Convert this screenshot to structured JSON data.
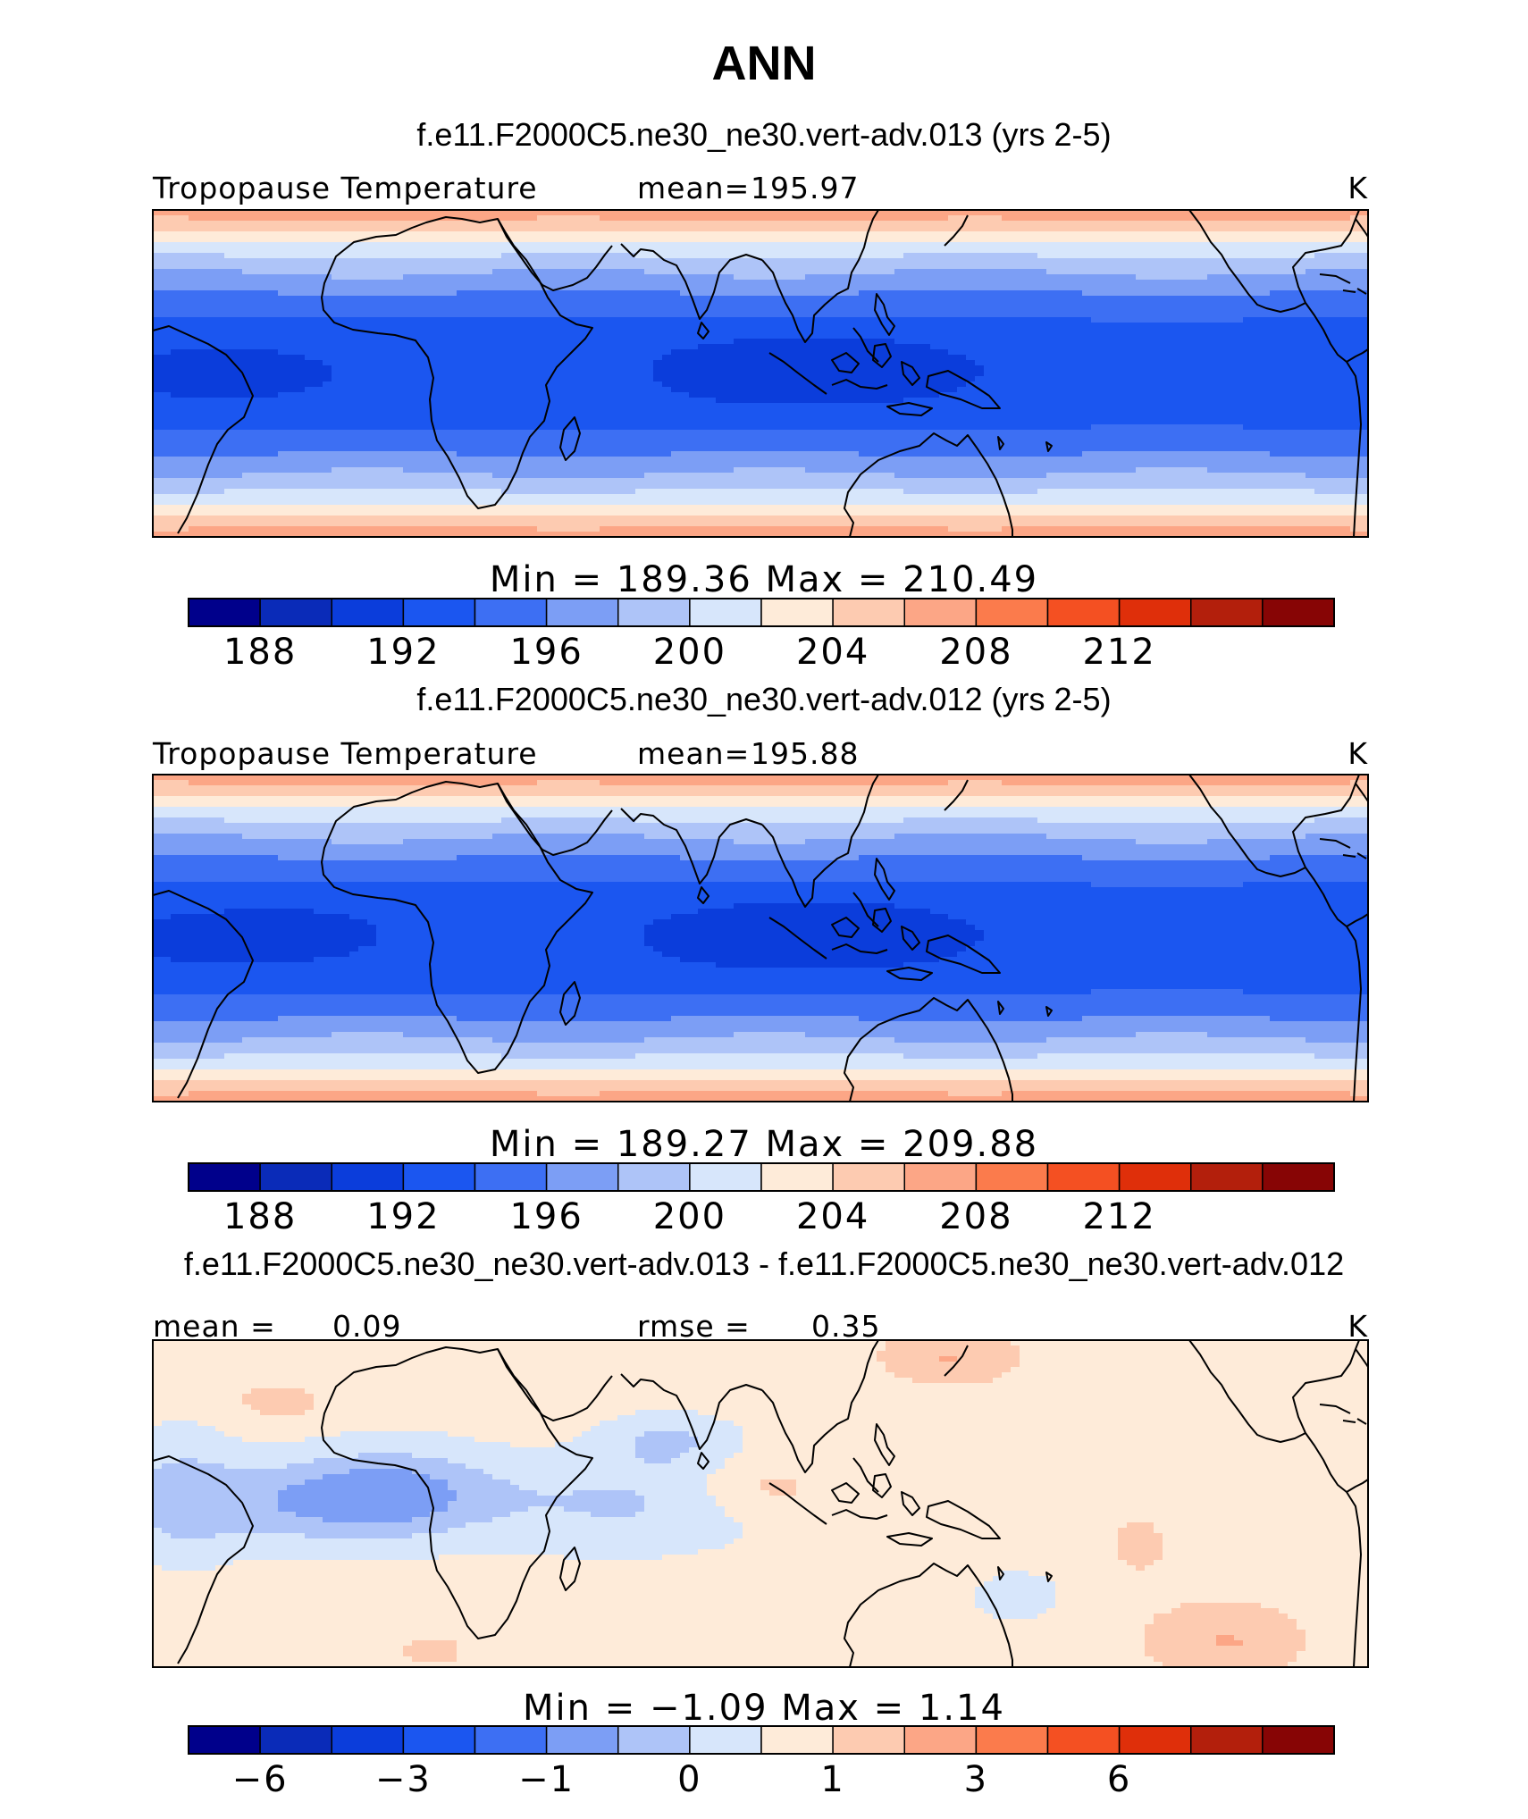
{
  "figure": {
    "title": "ANN",
    "colors": {
      "palette": [
        "#00008b",
        "#0a2bb8",
        "#0b3ddb",
        "#1b56f0",
        "#3d6ff3",
        "#7c9ef5",
        "#aec4f8",
        "#d7e6fb",
        "#feebd9",
        "#fdcbb1",
        "#fca686",
        "#fb7b4c",
        "#f45022",
        "#df2f0a",
        "#b31f0c",
        "#870505"
      ]
    }
  },
  "chart_data": [
    {
      "type": "heatmap",
      "subtitle": "f.e11.F2000C5.ne30_ne30.vert-adv.013 (yrs 2-5)",
      "variable_label": "Tropopause Temperature",
      "stat_label": "mean=",
      "stat_value": "195.97",
      "units": "K",
      "min_max_text": "Min = 189.36 Max = 210.49",
      "min": 189.36,
      "max": 210.49,
      "mean": 195.97,
      "colorbar": {
        "levels": [
          186,
          188,
          190,
          192,
          194,
          196,
          198,
          200,
          202,
          204,
          206,
          208,
          210,
          212,
          214
        ],
        "tick_labels": [
          "188",
          "192",
          "196",
          "200",
          "204",
          "208",
          "212"
        ]
      },
      "longitude_range": [
        -30,
        300
      ],
      "latitude_range": [
        -45,
        45
      ]
    },
    {
      "type": "heatmap",
      "subtitle": "f.e11.F2000C5.ne30_ne30.vert-adv.012 (yrs 2-5)",
      "variable_label": "Tropopause Temperature",
      "stat_label": "mean=",
      "stat_value": "195.88",
      "units": "K",
      "min_max_text": "Min = 189.27 Max = 209.88",
      "min": 189.27,
      "max": 209.88,
      "mean": 195.88,
      "colorbar": {
        "levels": [
          186,
          188,
          190,
          192,
          194,
          196,
          198,
          200,
          202,
          204,
          206,
          208,
          210,
          212,
          214
        ],
        "tick_labels": [
          "188",
          "192",
          "196",
          "200",
          "204",
          "208",
          "212"
        ]
      },
      "longitude_range": [
        -30,
        300
      ],
      "latitude_range": [
        -45,
        45
      ]
    },
    {
      "type": "heatmap",
      "subtitle": "f.e11.F2000C5.ne30_ne30.vert-adv.013 - f.e11.F2000C5.ne30_ne30.vert-adv.012",
      "variable_label": "",
      "stat_label": "mean =",
      "stat_value": "0.09",
      "stat2_label": "rmse =",
      "stat2_value": "0.35",
      "units": "K",
      "min_max_text": "Min = −1.09 Max = 1.14",
      "min": -1.09,
      "max": 1.14,
      "mean": 0.09,
      "rmse": 0.35,
      "colorbar": {
        "levels": [
          -8,
          -6,
          -4,
          -3,
          -2,
          -1,
          -0.5,
          0,
          0.5,
          1,
          2,
          3,
          4,
          6,
          8
        ],
        "tick_labels": [
          "−6",
          "−3",
          "−1",
          "0",
          "1",
          "3",
          "6"
        ]
      },
      "longitude_range": [
        -30,
        300
      ],
      "latitude_range": [
        -45,
        45
      ]
    }
  ]
}
